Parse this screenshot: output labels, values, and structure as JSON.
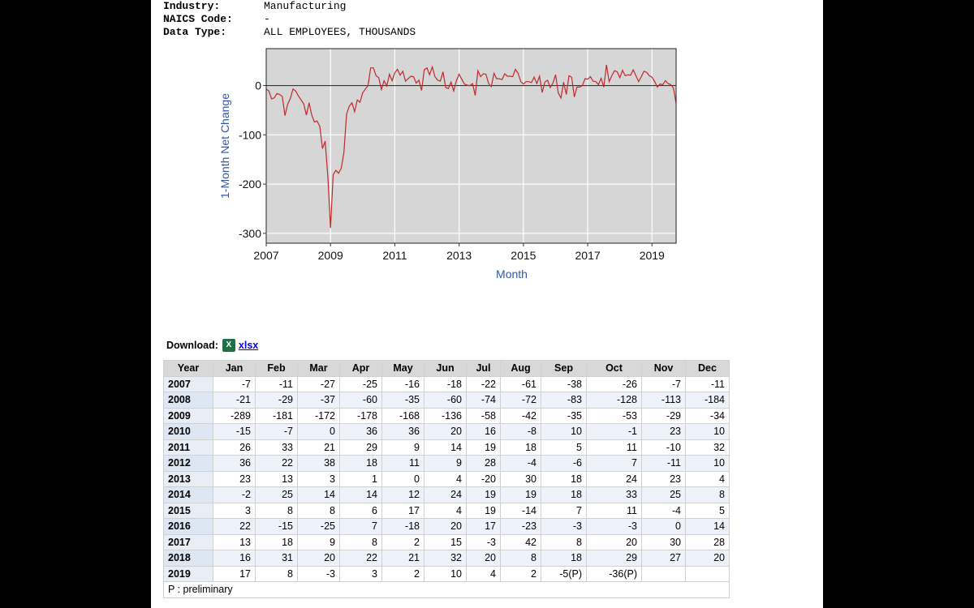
{
  "meta": {
    "industry_label": "Industry:",
    "industry_value": "Manufacturing",
    "naics_label": "NAICS Code:",
    "naics_value": "-",
    "datatype_label": "Data Type:",
    "datatype_value": "ALL EMPLOYEES, THOUSANDS"
  },
  "download": {
    "label": "Download:",
    "icon": "excel-icon",
    "link": "xlsx"
  },
  "table": {
    "headers": [
      "Year",
      "Jan",
      "Feb",
      "Mar",
      "Apr",
      "May",
      "Jun",
      "Jul",
      "Aug",
      "Sep",
      "Oct",
      "Nov",
      "Dec"
    ],
    "rows": [
      [
        "2007",
        "-7",
        "-11",
        "-27",
        "-25",
        "-16",
        "-18",
        "-22",
        "-61",
        "-38",
        "-26",
        "-7",
        "-11"
      ],
      [
        "2008",
        "-21",
        "-29",
        "-37",
        "-60",
        "-35",
        "-60",
        "-74",
        "-72",
        "-83",
        "-128",
        "-113",
        "-184"
      ],
      [
        "2009",
        "-289",
        "-181",
        "-172",
        "-178",
        "-168",
        "-136",
        "-58",
        "-42",
        "-35",
        "-53",
        "-29",
        "-34"
      ],
      [
        "2010",
        "-15",
        "-7",
        "0",
        "36",
        "36",
        "20",
        "16",
        "-8",
        "10",
        "-1",
        "23",
        "10"
      ],
      [
        "2011",
        "26",
        "33",
        "21",
        "29",
        "9",
        "14",
        "19",
        "18",
        "5",
        "11",
        "-10",
        "32"
      ],
      [
        "2012",
        "36",
        "22",
        "38",
        "18",
        "11",
        "9",
        "28",
        "-4",
        "-6",
        "7",
        "-11",
        "10"
      ],
      [
        "2013",
        "23",
        "13",
        "3",
        "1",
        "0",
        "4",
        "-20",
        "30",
        "18",
        "24",
        "23",
        "4"
      ],
      [
        "2014",
        "-2",
        "25",
        "14",
        "14",
        "12",
        "24",
        "19",
        "19",
        "18",
        "33",
        "25",
        "8"
      ],
      [
        "2015",
        "3",
        "8",
        "8",
        "6",
        "17",
        "4",
        "19",
        "-14",
        "7",
        "11",
        "-4",
        "5"
      ],
      [
        "2016",
        "22",
        "-15",
        "-25",
        "7",
        "-18",
        "20",
        "17",
        "-23",
        "-3",
        "-3",
        "0",
        "14"
      ],
      [
        "2017",
        "13",
        "18",
        "9",
        "8",
        "2",
        "15",
        "-3",
        "42",
        "8",
        "20",
        "30",
        "28"
      ],
      [
        "2018",
        "16",
        "31",
        "20",
        "22",
        "21",
        "32",
        "20",
        "8",
        "18",
        "29",
        "27",
        "20"
      ],
      [
        "2019",
        "17",
        "8",
        "-3",
        "3",
        "2",
        "10",
        "4",
        "2",
        "-5(P)",
        "-36(P)",
        "",
        ""
      ]
    ],
    "footnote": "P : preliminary"
  },
  "chart_data": {
    "type": "line",
    "title": "",
    "xlabel": "Month",
    "ylabel": "1-Month Net Change",
    "xlim": [
      2007,
      2019.75
    ],
    "ylim": [
      -320,
      75
    ],
    "x_ticks": [
      "2007",
      "2009",
      "2011",
      "2013",
      "2015",
      "2017",
      "2019"
    ],
    "y_ticks": [
      "0",
      "-100",
      "-200",
      "-300"
    ],
    "grid": true,
    "line_color": "#c0282d",
    "start_year": 2007,
    "series": [
      {
        "values": [
          -7,
          -11,
          -27,
          -25,
          -16,
          -18,
          -22,
          -61,
          -38,
          -26,
          -7,
          -11,
          -21,
          -29,
          -37,
          -60,
          -35,
          -60,
          -74,
          -72,
          -83,
          -128,
          -113,
          -184,
          -289,
          -181,
          -172,
          -178,
          -168,
          -136,
          -58,
          -42,
          -35,
          -53,
          -29,
          -34,
          -15,
          -7,
          0,
          36,
          36,
          20,
          16,
          -8,
          10,
          -1,
          23,
          10,
          26,
          33,
          21,
          29,
          9,
          14,
          19,
          18,
          5,
          11,
          -10,
          32,
          36,
          22,
          38,
          18,
          11,
          9,
          28,
          -4,
          -6,
          7,
          -11,
          10,
          23,
          13,
          3,
          1,
          0,
          4,
          -20,
          30,
          18,
          24,
          23,
          4,
          -2,
          25,
          14,
          14,
          12,
          24,
          19,
          19,
          18,
          33,
          25,
          8,
          3,
          8,
          8,
          6,
          17,
          4,
          19,
          -14,
          7,
          11,
          -4,
          5,
          22,
          -15,
          -25,
          7,
          -18,
          20,
          17,
          -23,
          -3,
          -3,
          0,
          14,
          13,
          18,
          9,
          8,
          2,
          15,
          -3,
          42,
          8,
          20,
          30,
          28,
          16,
          31,
          20,
          22,
          21,
          32,
          20,
          8,
          18,
          29,
          27,
          20,
          17,
          8,
          -3,
          3,
          2,
          10,
          4,
          2,
          -5,
          -36
        ]
      }
    ]
  }
}
